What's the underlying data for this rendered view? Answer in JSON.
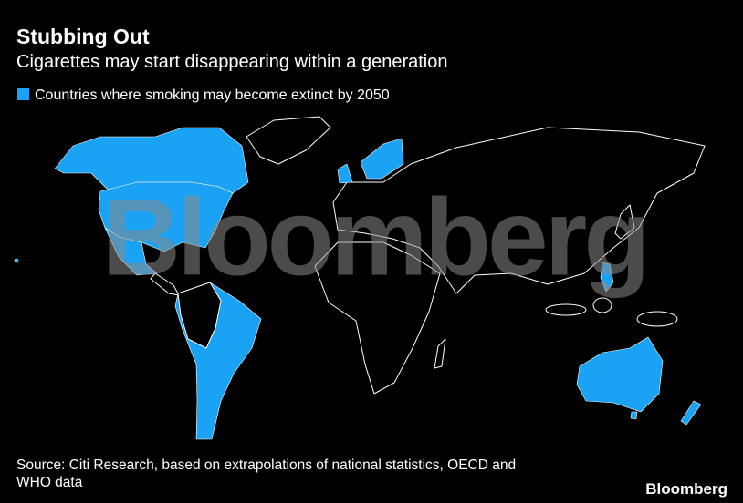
{
  "header": {
    "title": "Stubbing Out",
    "subtitle": "Cigarettes may start disappearing within a generation"
  },
  "legend": {
    "label": "Countries where smoking may become extinct by 2050",
    "color": "#1aa3f5"
  },
  "watermark": "Bloomberg",
  "footer": {
    "source_line1": "Source: Citi Research, based on extrapolations of national statistics, OECD and",
    "source_line2": "WHO data",
    "brand": "Bloomberg"
  }
}
